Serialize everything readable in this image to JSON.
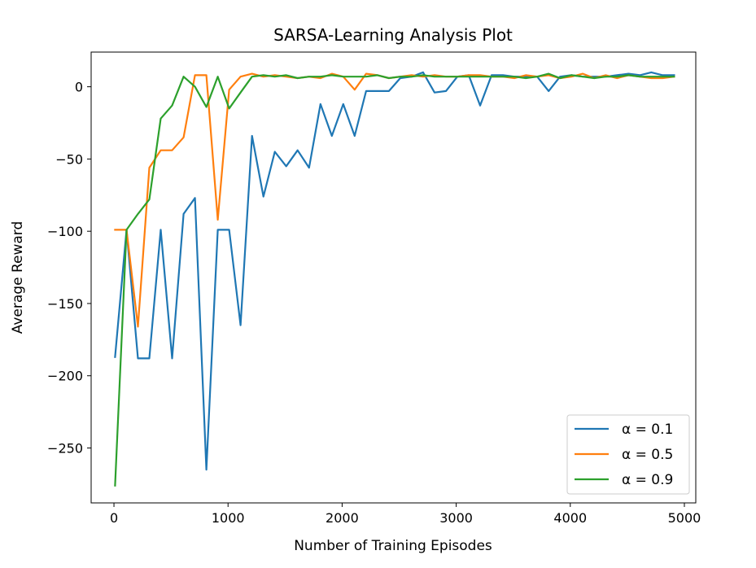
{
  "chart_data": {
    "type": "line",
    "title": "SARSA-Learning Analysis Plot",
    "xlabel": "Number of Training Episodes",
    "ylabel": "Average Reward",
    "xlim": [
      -200,
      5100
    ],
    "ylim": [
      -288,
      24
    ],
    "x_ticks": [
      0,
      1000,
      2000,
      3000,
      4000,
      5000
    ],
    "y_ticks": [
      0,
      -50,
      -100,
      -150,
      -200,
      -250
    ],
    "x_tick_labels": [
      "0",
      "1000",
      "2000",
      "3000",
      "4000",
      "5000"
    ],
    "y_tick_labels": [
      "0",
      "−50",
      "−100",
      "−150",
      "−200",
      "−250"
    ],
    "grid": false,
    "legend_position": "lower right",
    "x": [
      10,
      110,
      210,
      310,
      410,
      510,
      610,
      710,
      810,
      910,
      1010,
      1110,
      1210,
      1310,
      1410,
      1510,
      1610,
      1710,
      1810,
      1910,
      2010,
      2110,
      2210,
      2310,
      2410,
      2510,
      2610,
      2710,
      2810,
      2910,
      3010,
      3110,
      3210,
      3310,
      3410,
      3510,
      3610,
      3710,
      3810,
      3910,
      4010,
      4110,
      4210,
      4310,
      4410,
      4510,
      4610,
      4710,
      4810,
      4910
    ],
    "series": [
      {
        "name": "α = 0.1",
        "legend_label": "α = 0.1",
        "color": "#1f77b4",
        "values": [
          -187,
          -99,
          -188,
          -188,
          -99,
          -188,
          -88,
          -77,
          -265,
          -99,
          -99,
          -165,
          -34,
          -76,
          -45,
          -55,
          -44,
          -56,
          -12,
          -34,
          -12,
          -34,
          -3,
          -3,
          -3,
          6,
          7,
          10,
          -4,
          -3,
          7,
          8,
          -13,
          8,
          8,
          7,
          7,
          7,
          -3,
          7,
          8,
          7,
          7,
          7,
          8,
          9,
          8,
          10,
          8,
          8
        ]
      },
      {
        "name": "α = 0.5",
        "legend_label": "α = 0.5",
        "color": "#ff7f0e",
        "values": [
          -99,
          -99,
          -166,
          -56,
          -44,
          -44,
          -35,
          8,
          8,
          -92,
          -2,
          7,
          9,
          7,
          8,
          7,
          6,
          7,
          6,
          9,
          7,
          -2,
          9,
          8,
          6,
          7,
          8,
          7,
          8,
          7,
          7,
          8,
          8,
          7,
          7,
          6,
          8,
          7,
          8,
          6,
          7,
          9,
          6,
          8,
          6,
          8,
          7,
          6,
          6,
          7
        ]
      },
      {
        "name": "α = 0.9",
        "legend_label": "α = 0.9",
        "color": "#2ca02c",
        "values": [
          -276,
          -99,
          -88,
          -78,
          -22,
          -13,
          7,
          0,
          -14,
          7,
          -15,
          -4,
          7,
          8,
          7,
          8,
          6,
          7,
          7,
          8,
          7,
          7,
          7,
          8,
          6,
          7,
          7,
          8,
          7,
          7,
          7,
          7,
          7,
          7,
          7,
          7,
          6,
          7,
          9,
          6,
          8,
          7,
          6,
          7,
          7,
          8,
          7,
          7,
          7,
          7
        ]
      }
    ]
  }
}
